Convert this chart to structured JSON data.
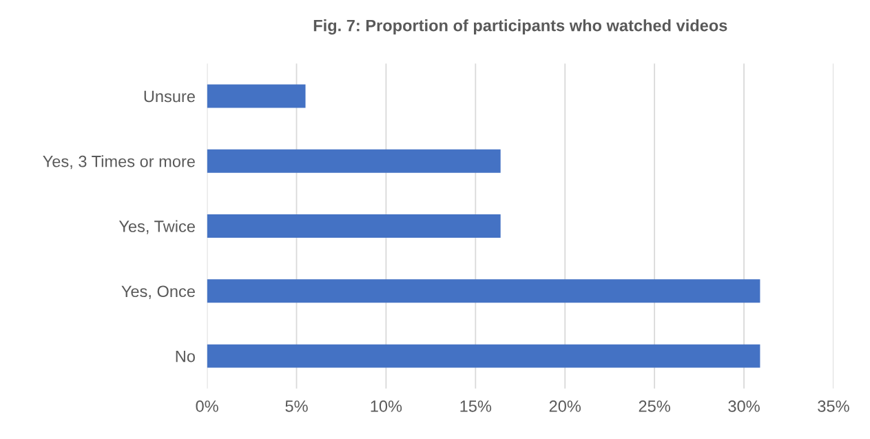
{
  "chart_data": {
    "type": "bar",
    "orientation": "horizontal",
    "title": "Fig. 7: Proportion of participants who watched videos",
    "categories": [
      "Unsure",
      "Yes, 3 Times or more",
      "Yes, Twice",
      "Yes, Once",
      "No"
    ],
    "values": [
      5.5,
      16.4,
      16.4,
      30.9,
      30.9
    ],
    "color": "#4472c4",
    "xlim": [
      0,
      35
    ],
    "xticks": [
      {
        "value": 0,
        "label": "0%"
      },
      {
        "value": 5,
        "label": "5%"
      },
      {
        "value": 10,
        "label": "10%"
      },
      {
        "value": 15,
        "label": "15%"
      },
      {
        "value": 20,
        "label": "20%"
      },
      {
        "value": 25,
        "label": "25%"
      },
      {
        "value": 30,
        "label": "30%"
      },
      {
        "value": 35,
        "label": "35%"
      }
    ],
    "grid": "x"
  }
}
